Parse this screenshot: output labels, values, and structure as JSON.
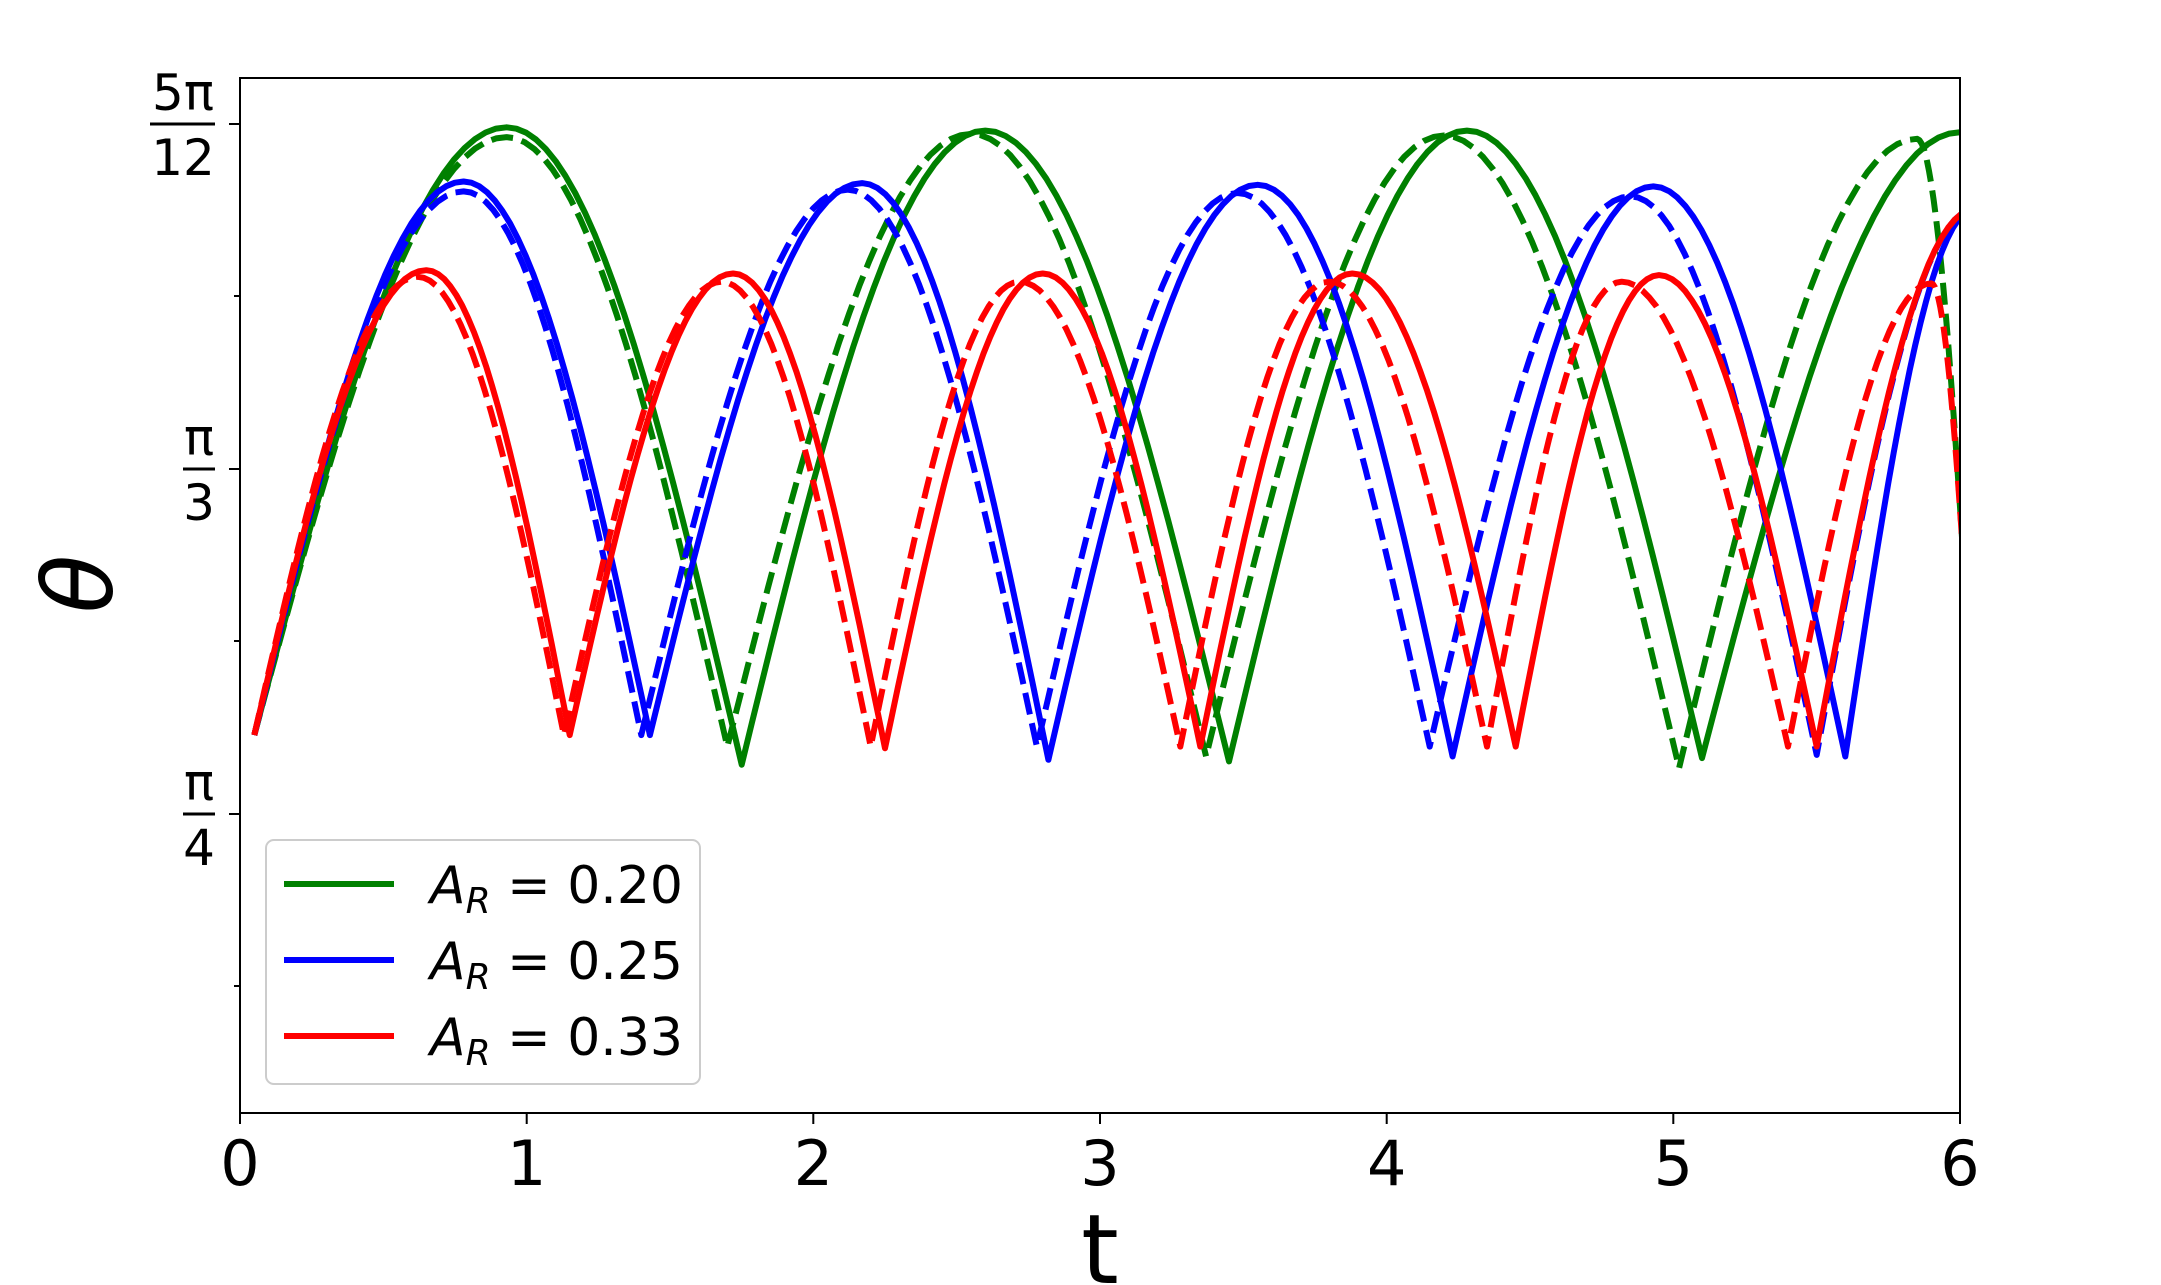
{
  "chart_data": {
    "type": "line",
    "title": "",
    "xlabel": "t",
    "ylabel": "θ",
    "xlim": [
      0,
      6
    ],
    "ylim_degrees": [
      15,
      78
    ],
    "x_ticks": [
      "0",
      "1",
      "2",
      "3",
      "4",
      "5",
      "6"
    ],
    "y_ticks": [
      {
        "value_degrees": 45,
        "numerator": "π",
        "denominator": "4"
      },
      {
        "value_degrees": 60,
        "numerator": "π",
        "denominator": "3"
      },
      {
        "value_degrees": 75,
        "numerator": "5π",
        "denominator": "12"
      }
    ],
    "grid": false,
    "legend": {
      "placement": "lower-left",
      "entries": [
        {
          "label_main": "A",
          "label_sub": "R",
          "label_value": " = 0.20",
          "color": "#008000"
        },
        {
          "label_main": "A",
          "label_sub": "R",
          "label_value": " = 0.25",
          "color": "#0000ff"
        },
        {
          "label_main": "A",
          "label_sub": "R",
          "label_value": " = 0.33",
          "color": "#ff0000"
        }
      ]
    },
    "series_notes": "Each colour has a solid curve and a dashed curve. Oscillation between a trough near 38° and a peak.",
    "series": [
      {
        "color": "#008000",
        "style": "solid",
        "troughs": [
          [
            0.05,
            38
          ],
          [
            1.75,
            36.2
          ],
          [
            3.45,
            36.4
          ],
          [
            5.1,
            36.6
          ]
        ],
        "peaks": [
          [
            0.93,
            75
          ],
          [
            2.6,
            74.8
          ],
          [
            4.28,
            74.8
          ],
          [
            6.0,
            74.7
          ]
        ]
      },
      {
        "color": "#008000",
        "style": "dashed",
        "troughs": [
          [
            0.05,
            38
          ],
          [
            1.7,
            37.3
          ],
          [
            3.37,
            36.7
          ],
          [
            5.02,
            36.0
          ]
        ],
        "peaks": [
          [
            0.93,
            74.4
          ],
          [
            2.55,
            74.6
          ],
          [
            4.2,
            74.5
          ],
          [
            5.85,
            74.3
          ]
        ]
      },
      {
        "color": "#0000ff",
        "style": "solid",
        "troughs": [
          [
            0.05,
            38
          ],
          [
            1.43,
            38
          ],
          [
            2.82,
            36.5
          ],
          [
            4.23,
            36.7
          ],
          [
            5.6,
            36.7
          ]
        ],
        "peaks": [
          [
            0.78,
            71.7
          ],
          [
            2.17,
            71.6
          ],
          [
            3.55,
            71.5
          ],
          [
            4.93,
            71.4
          ]
        ]
      },
      {
        "color": "#0000ff",
        "style": "dashed",
        "troughs": [
          [
            0.05,
            38
          ],
          [
            1.4,
            38
          ],
          [
            2.78,
            37.3
          ],
          [
            4.15,
            37.3
          ],
          [
            5.5,
            36.8
          ]
        ],
        "peaks": [
          [
            0.78,
            71.1
          ],
          [
            2.12,
            71.2
          ],
          [
            3.48,
            71.0
          ],
          [
            4.85,
            70.8
          ]
        ]
      },
      {
        "color": "#ff0000",
        "style": "solid",
        "troughs": [
          [
            0.05,
            38
          ],
          [
            1.15,
            38
          ],
          [
            2.25,
            37.2
          ],
          [
            3.35,
            37.3
          ],
          [
            4.45,
            37.3
          ],
          [
            5.5,
            37.3
          ]
        ],
        "peaks": [
          [
            0.65,
            66.3
          ],
          [
            1.72,
            66.1
          ],
          [
            2.8,
            66.1
          ],
          [
            3.88,
            66.1
          ],
          [
            4.95,
            66.0
          ]
        ]
      },
      {
        "color": "#ff0000",
        "style": "dashed",
        "troughs": [
          [
            0.05,
            38
          ],
          [
            1.13,
            38
          ],
          [
            2.2,
            37.3
          ],
          [
            3.28,
            37.3
          ],
          [
            4.35,
            37.3
          ],
          [
            5.4,
            37.3
          ]
        ],
        "peaks": [
          [
            0.62,
            65.9
          ],
          [
            1.68,
            65.6
          ],
          [
            2.72,
            65.6
          ],
          [
            3.8,
            65.6
          ],
          [
            4.82,
            65.6
          ],
          [
            5.9,
            65.5
          ]
        ]
      }
    ]
  }
}
